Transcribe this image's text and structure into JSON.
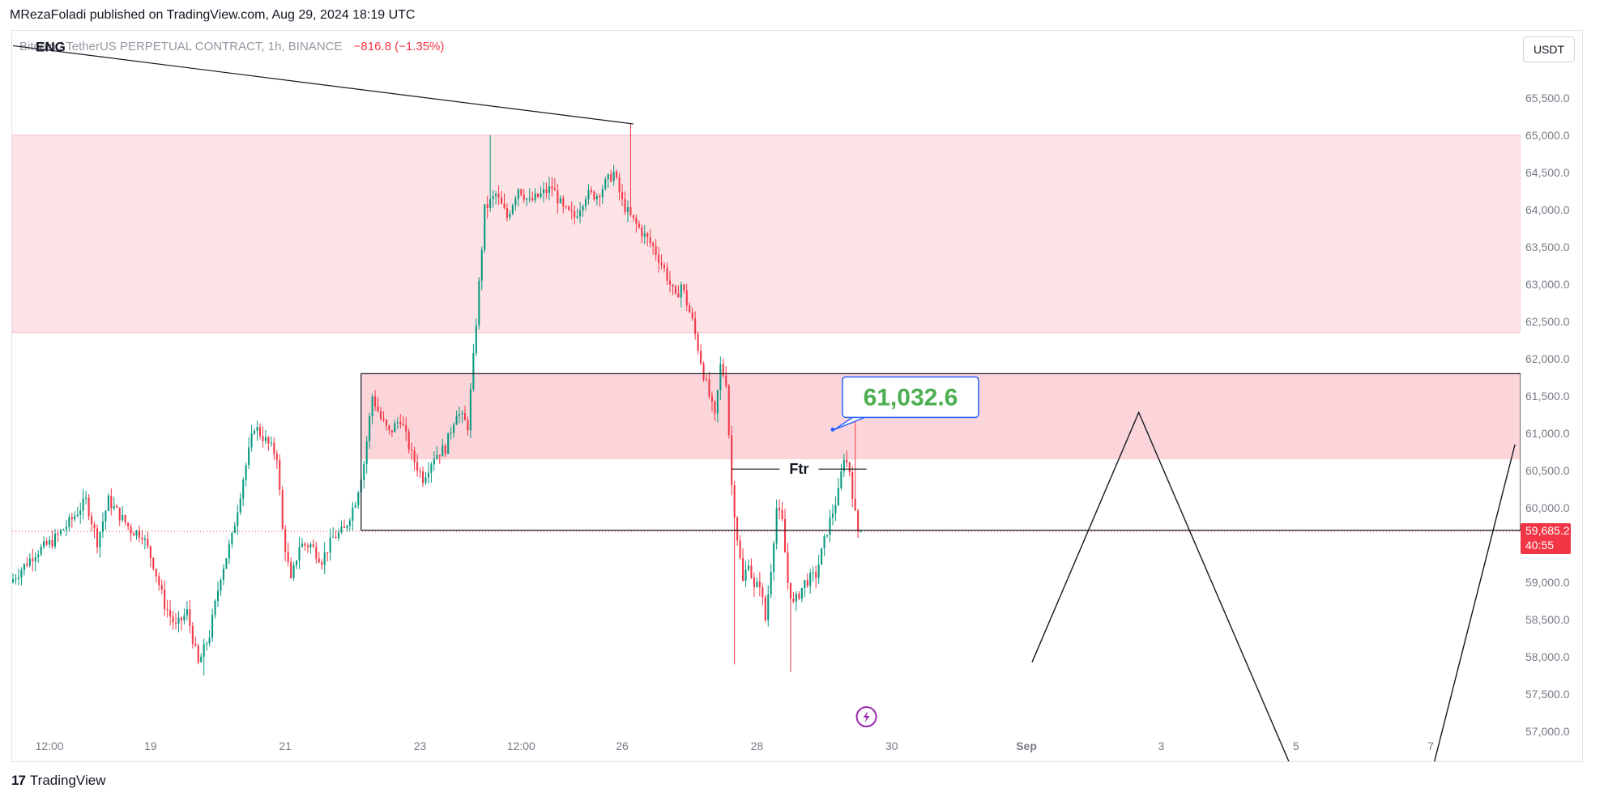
{
  "header": {
    "publisher": "MRezaFoladi published on TradingView.com, Aug 29, 2024 18:19 UTC",
    "symbol": "Bitcoin / TetherUS PERPETUAL CONTRACT, 1h, BINANCE",
    "change": "−816.8 (−1.35%)",
    "currency": "USDT"
  },
  "footer": {
    "brand": "TradingView",
    "logo": "17"
  },
  "colors": {
    "up": "#089981",
    "down": "#f23645",
    "zone": "#fde3e6",
    "zone_strong": "#fbd5da",
    "axis_text": "#787b86",
    "price_tag": "#f23645",
    "callout_text": "#4caf50",
    "callout_border": "#2962ff"
  },
  "chart_data": {
    "type": "candlestick",
    "symbol": "Bitcoin / TetherUS PERPETUAL CONTRACT",
    "interval": "1h",
    "exchange": "BINANCE",
    "y_ticks": [
      "65,500.0",
      "65,000.0",
      "64,500.0",
      "64,000.0",
      "63,500.0",
      "63,000.0",
      "62,500.0",
      "62,000.0",
      "61,500.0",
      "61,000.0",
      "60,500.0",
      "60,000.0",
      "59,000.0",
      "58,500.0",
      "58,000.0",
      "57,500.0",
      "57,000.0"
    ],
    "y_tick_values": [
      65500,
      65000,
      64500,
      64000,
      63500,
      63000,
      62500,
      62000,
      61500,
      61000,
      60500,
      60000,
      59000,
      58500,
      58000,
      57500,
      57000
    ],
    "x_ticks": [
      "12:00",
      "19",
      "21",
      "23",
      "12:00",
      "26",
      "28",
      "30",
      "Sep",
      "3",
      "5",
      "7"
    ],
    "x_tick_hours": [
      -12,
      24,
      72,
      120,
      156,
      192,
      240,
      288,
      336,
      384,
      432,
      480
    ],
    "x_origin": "Aug 18 00:00 UTC, hours",
    "ylim": [
      56600,
      66400
    ],
    "xlim": [
      -25.3,
      512
    ],
    "last_price": "59,685.2",
    "last_price_value": 59685.2,
    "countdown": "40:55",
    "candle_path": [
      [
        -25,
        59000
      ],
      [
        -16,
        59400
      ],
      [
        -10,
        59550
      ],
      [
        -4,
        59800
      ],
      [
        2,
        60100
      ],
      [
        6,
        59550
      ],
      [
        10,
        60100
      ],
      [
        14,
        59900
      ],
      [
        18,
        59700
      ],
      [
        22,
        59650
      ],
      [
        26,
        59250
      ],
      [
        30,
        58700
      ],
      [
        34,
        58400
      ],
      [
        38,
        58600
      ],
      [
        42,
        57900
      ],
      [
        46,
        58300
      ],
      [
        50,
        59100
      ],
      [
        54,
        59600
      ],
      [
        58,
        60400
      ],
      [
        62,
        61100
      ],
      [
        66,
        60900
      ],
      [
        70,
        60700
      ],
      [
        72,
        59700
      ],
      [
        75,
        59000
      ],
      [
        78,
        59500
      ],
      [
        82,
        59500
      ],
      [
        86,
        59300
      ],
      [
        90,
        59600
      ],
      [
        94,
        59700
      ],
      [
        98,
        60100
      ],
      [
        101,
        60600
      ],
      [
        104,
        61500
      ],
      [
        107,
        61200
      ],
      [
        110,
        61000
      ],
      [
        114,
        61200
      ],
      [
        118,
        60700
      ],
      [
        122,
        60400
      ],
      [
        126,
        60700
      ],
      [
        130,
        60800
      ],
      [
        134,
        61300
      ],
      [
        138,
        61100
      ],
      [
        140,
        62000
      ],
      [
        144,
        64000
      ],
      [
        148,
        64200
      ],
      [
        152,
        63900
      ],
      [
        156,
        64300
      ],
      [
        160,
        64100
      ],
      [
        164,
        64200
      ],
      [
        168,
        64300
      ],
      [
        172,
        64000
      ],
      [
        176,
        63900
      ],
      [
        180,
        64200
      ],
      [
        184,
        64200
      ],
      [
        190,
        64500
      ],
      [
        193,
        64100
      ],
      [
        196,
        63900
      ],
      [
        200,
        63700
      ],
      [
        204,
        63500
      ],
      [
        208,
        63200
      ],
      [
        212,
        62800
      ],
      [
        214,
        63000
      ],
      [
        218,
        62500
      ],
      [
        222,
        61800
      ],
      [
        226,
        61200
      ],
      [
        228,
        61900
      ],
      [
        230,
        61700
      ],
      [
        232,
        60300
      ],
      [
        234,
        59600
      ],
      [
        236,
        59000
      ],
      [
        238,
        59300
      ],
      [
        240,
        58900
      ],
      [
        242,
        59000
      ],
      [
        244,
        58500
      ],
      [
        246,
        59200
      ],
      [
        248,
        60000
      ],
      [
        250,
        59800
      ],
      [
        252,
        59000
      ],
      [
        254,
        58700
      ],
      [
        258,
        59000
      ],
      [
        262,
        59100
      ],
      [
        266,
        59700
      ],
      [
        270,
        60200
      ],
      [
        272,
        60700
      ],
      [
        274,
        60500
      ],
      [
        276,
        59900
      ],
      [
        277,
        59685
      ]
    ],
    "seed": 7,
    "zones": [
      {
        "name": "upper-supply-zone",
        "from_hour": -25.3,
        "to_hour": 512,
        "y_low": 62350,
        "y_high": 65000
      },
      {
        "name": "lower-supply-zone",
        "from_hour": 99,
        "to_hour": 512,
        "y_low": 60650,
        "y_high": 61800
      }
    ],
    "annotations": [
      {
        "label": "ENG",
        "type": "trendline",
        "from": [
          -25,
          66200
        ],
        "to": [
          196,
          65150
        ]
      },
      {
        "label": "",
        "type": "rectangle",
        "from": [
          99,
          59700
        ],
        "to": [
          512,
          61800
        ]
      },
      {
        "label": "Ftr",
        "type": "horizontal_segment",
        "from": [
          231,
          60520
        ],
        "to": [
          279,
          60520
        ]
      },
      {
        "label": "61,032.6",
        "type": "price_callout",
        "point": [
          267,
          61050
        ]
      }
    ],
    "projection_path": [
      [
        338,
        57930
      ],
      [
        376,
        61280
      ],
      [
        430,
        56550
      ]
    ],
    "projection_path_2": [
      [
        481,
        56550
      ],
      [
        510,
        60850
      ]
    ],
    "lightning_marker_hour": 279
  }
}
